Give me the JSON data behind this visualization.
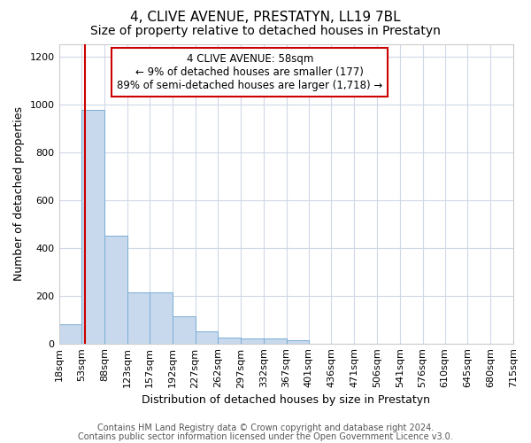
{
  "title": "4, CLIVE AVENUE, PRESTATYN, LL19 7BL",
  "subtitle": "Size of property relative to detached houses in Prestatyn",
  "xlabel": "Distribution of detached houses by size in Prestatyn",
  "ylabel": "Number of detached properties",
  "footer_line1": "Contains HM Land Registry data © Crown copyright and database right 2024.",
  "footer_line2": "Contains public sector information licensed under the Open Government Licence v3.0.",
  "bin_labels": [
    "18sqm",
    "53sqm",
    "88sqm",
    "123sqm",
    "157sqm",
    "192sqm",
    "227sqm",
    "262sqm",
    "297sqm",
    "332sqm",
    "367sqm",
    "401sqm",
    "436sqm",
    "471sqm",
    "506sqm",
    "541sqm",
    "576sqm",
    "610sqm",
    "645sqm",
    "680sqm",
    "715sqm"
  ],
  "bar_values": [
    80,
    975,
    450,
    215,
    215,
    115,
    50,
    25,
    20,
    20,
    12,
    0,
    0,
    0,
    0,
    0,
    0,
    0,
    0,
    0,
    0
  ],
  "bar_color": "#c8d9ee",
  "bar_edge_color": "#7aadd4",
  "property_line_x": 58,
  "bin_edges_numeric": [
    18,
    53,
    88,
    123,
    157,
    192,
    227,
    262,
    297,
    332,
    367,
    401,
    436,
    471,
    506,
    541,
    576,
    610,
    645,
    680,
    715
  ],
  "annotation_line1": "4 CLIVE AVENUE: 58sqm",
  "annotation_line2": "← 9% of detached houses are smaller (177)",
  "annotation_line3": "89% of semi-detached houses are larger (1,718) →",
  "annotation_box_color": "#ffffff",
  "annotation_box_edge": "#cc0000",
  "vline_color": "#cc0000",
  "ylim": [
    0,
    1250
  ],
  "yticks": [
    0,
    200,
    400,
    600,
    800,
    1000,
    1200
  ],
  "title_fontsize": 11,
  "subtitle_fontsize": 10,
  "axis_label_fontsize": 9,
  "tick_fontsize": 8,
  "footer_fontsize": 7,
  "annotation_fontsize": 8.5,
  "bg_color": "#ffffff",
  "plot_bg_color": "#ffffff",
  "grid_color": "#d0d8e8",
  "spine_color": "#cccccc"
}
